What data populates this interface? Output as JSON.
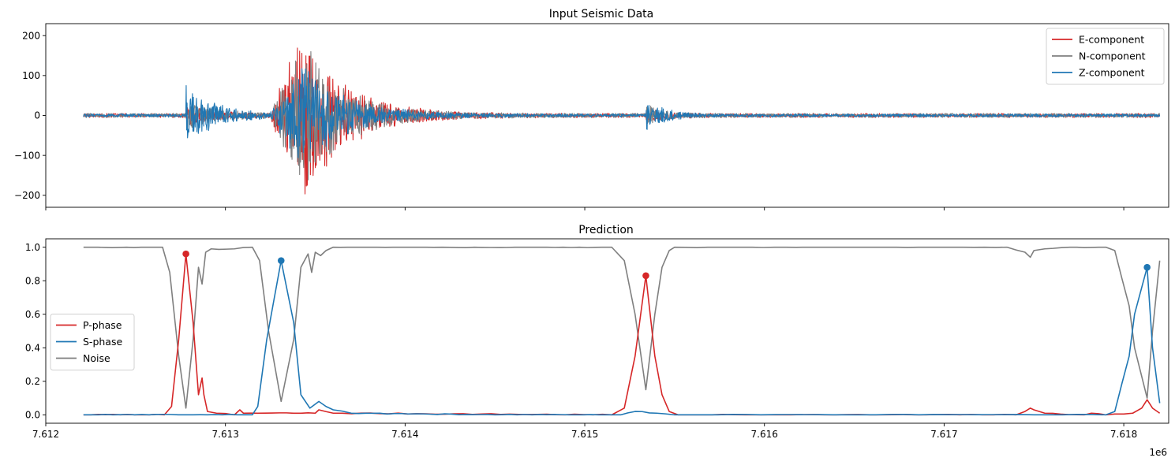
{
  "chart_data": [
    {
      "type": "line",
      "title": "Input Seismic Data",
      "xlim": [
        7612000,
        7618250
      ],
      "ylim": [
        -230,
        230
      ],
      "xticks": [
        7612000,
        7613000,
        7614000,
        7615000,
        7616000,
        7617000,
        7618000
      ],
      "xtick_labels_visible": false,
      "yticks": [
        -200,
        -100,
        0,
        100,
        200
      ],
      "ytick_labels": [
        "−200",
        "−100",
        "0",
        "100",
        "200"
      ],
      "x_range": [
        7612210,
        7618200
      ],
      "legend": {
        "placement": "upper-right",
        "entries": [
          "E-component",
          "N-component",
          "Z-component"
        ]
      },
      "series": [
        {
          "name": "E-component",
          "color": "#d62728",
          "amplitude_envelope": {
            "noise_level": 5,
            "p_arrival": {
              "x": 7612780,
              "peak": 20
            },
            "s_arrival": {
              "x": 7613310,
              "peak": 210
            },
            "late_event": {
              "x": 7615340,
              "peak": 15
            }
          }
        },
        {
          "name": "N-component",
          "color": "#7f7f7f",
          "amplitude_envelope": {
            "noise_level": 5,
            "p_arrival": {
              "x": 7612780,
              "peak": 30
            },
            "s_arrival": {
              "x": 7613310,
              "peak": 175
            },
            "late_event": {
              "x": 7615340,
              "peak": 25
            }
          }
        },
        {
          "name": "Z-component",
          "color": "#1f77b4",
          "amplitude_envelope": {
            "noise_level": 4,
            "p_arrival": {
              "x": 7612780,
              "peak": 65
            },
            "s_arrival": {
              "x": 7613310,
              "peak": 120
            },
            "late_event": {
              "x": 7615340,
              "peak": 40
            }
          }
        }
      ]
    },
    {
      "type": "line",
      "title": "Prediction",
      "xlim": [
        7612000,
        7618250
      ],
      "ylim": [
        -0.05,
        1.05
      ],
      "xticks": [
        7612000,
        7613000,
        7614000,
        7615000,
        7616000,
        7617000,
        7618000
      ],
      "xtick_labels": [
        "7.612",
        "7.613",
        "7.614",
        "7.615",
        "7.616",
        "7.617",
        "7.618"
      ],
      "x_offset_label": "1e6",
      "yticks": [
        0.0,
        0.2,
        0.4,
        0.6,
        0.8,
        1.0
      ],
      "ytick_labels": [
        "0.0",
        "0.2",
        "0.4",
        "0.6",
        "0.8",
        "1.0"
      ],
      "legend": {
        "placement": "center-left",
        "entries": [
          "P-phase",
          "S-phase",
          "Noise"
        ]
      },
      "series": [
        {
          "name": "P-phase",
          "color": "#d62728",
          "x": [
            7612210,
            7612660,
            7612700,
            7612740,
            7612780,
            7612820,
            7612850,
            7612870,
            7612880,
            7612900,
            7612950,
            7613050,
            7613080,
            7613100,
            7613500,
            7613520,
            7613600,
            7615150,
            7615220,
            7615280,
            7615340,
            7615390,
            7615430,
            7615470,
            7615520,
            7617400,
            7617450,
            7617480,
            7617500,
            7617560,
            7617780,
            7617820,
            7617900,
            7618050,
            7618100,
            7618130,
            7618160,
            7618200
          ],
          "values": [
            0,
            0,
            0.05,
            0.45,
            0.96,
            0.55,
            0.12,
            0.22,
            0.12,
            0.02,
            0.01,
            0.0,
            0.03,
            0.01,
            0.01,
            0.03,
            0.01,
            0.0,
            0.04,
            0.35,
            0.83,
            0.35,
            0.12,
            0.02,
            0.0,
            0.0,
            0.02,
            0.04,
            0.03,
            0.01,
            0.0,
            0.01,
            0.0,
            0.01,
            0.04,
            0.09,
            0.04,
            0.01
          ]
        },
        {
          "name": "S-phase",
          "color": "#1f77b4",
          "x": [
            7612210,
            7612900,
            7613150,
            7613180,
            7613230,
            7613310,
            7613380,
            7613420,
            7613470,
            7613520,
            7613560,
            7613600,
            7613700,
            7614500,
            7615200,
            7615280,
            7615400,
            7615500,
            7617900,
            7617950,
            7618030,
            7618060,
            7618130,
            7618160,
            7618200
          ],
          "values": [
            0,
            0,
            0.0,
            0.05,
            0.45,
            0.92,
            0.55,
            0.12,
            0.04,
            0.08,
            0.05,
            0.03,
            0.01,
            0.0,
            0.0,
            0.02,
            0.01,
            0.0,
            0.0,
            0.02,
            0.35,
            0.6,
            0.88,
            0.4,
            0.07
          ]
        },
        {
          "name": "Noise",
          "color": "#7f7f7f",
          "x": [
            7612210,
            7612650,
            7612690,
            7612740,
            7612780,
            7612820,
            7612850,
            7612870,
            7612890,
            7612920,
            7613050,
            7613150,
            7613190,
            7613240,
            7613310,
            7613380,
            7613420,
            7613460,
            7613480,
            7613500,
            7613530,
            7613560,
            7613600,
            7613800,
            7615150,
            7615220,
            7615280,
            7615340,
            7615390,
            7615430,
            7615470,
            7615500,
            7617350,
            7617450,
            7617480,
            7617500,
            7617560,
            7617700,
            7617900,
            7617950,
            7618030,
            7618060,
            7618130,
            7618160,
            7618200
          ],
          "values": [
            1.0,
            1.0,
            0.85,
            0.35,
            0.04,
            0.45,
            0.88,
            0.78,
            0.97,
            0.99,
            0.99,
            1.0,
            0.92,
            0.5,
            0.08,
            0.45,
            0.88,
            0.96,
            0.85,
            0.97,
            0.95,
            0.98,
            1.0,
            1.0,
            1.0,
            0.92,
            0.6,
            0.15,
            0.6,
            0.88,
            0.98,
            1.0,
            1.0,
            0.97,
            0.94,
            0.98,
            0.99,
            1.0,
            1.0,
            0.98,
            0.65,
            0.4,
            0.1,
            0.5,
            0.92
          ]
        }
      ],
      "peak_markers": [
        {
          "series": "P-phase",
          "x": 7612780,
          "y": 0.96,
          "color": "#d62728"
        },
        {
          "series": "S-phase",
          "x": 7613310,
          "y": 0.92,
          "color": "#1f77b4"
        },
        {
          "series": "P-phase",
          "x": 7615340,
          "y": 0.83,
          "color": "#d62728"
        },
        {
          "series": "S-phase",
          "x": 7618130,
          "y": 0.88,
          "color": "#1f77b4"
        }
      ]
    }
  ]
}
